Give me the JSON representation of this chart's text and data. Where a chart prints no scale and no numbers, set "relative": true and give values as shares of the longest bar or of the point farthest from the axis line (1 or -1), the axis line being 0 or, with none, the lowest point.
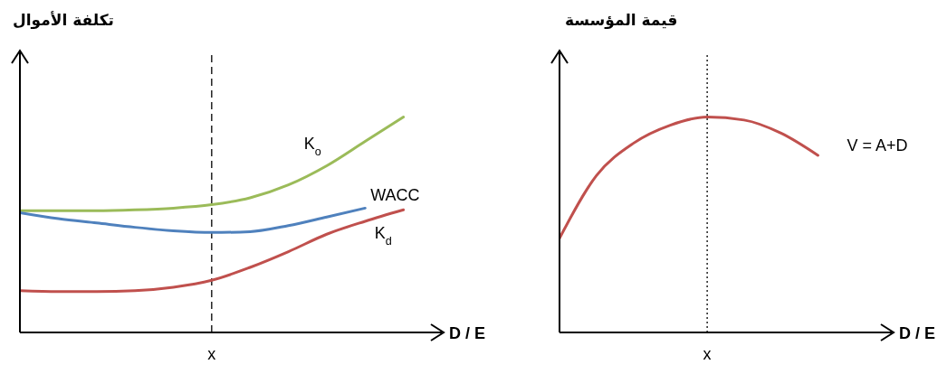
{
  "chart_data": [
    {
      "type": "line",
      "relative": true,
      "ylabel": "تكلفة الأموال",
      "xlabel": "D / E",
      "marker": "none",
      "line_style": "solid",
      "categories": [
        null,
        null,
        null,
        null,
        null,
        null,
        null,
        null,
        null,
        null,
        null,
        null
      ],
      "series": [
        {
          "name": "K$_{o}$",
          "color": "#9bbb59",
          "values": [
            0.565,
            0.565,
            0.565,
            0.569,
            0.577,
            0.593,
            0.625,
            0.685,
            0.774,
            0.887,
            1,
            null
          ]
        },
        {
          "name": "WACC",
          "color": "#4f81bd",
          "values": [
            0.556,
            0.528,
            0.508,
            0.488,
            0.472,
            0.464,
            0.468,
            0.496,
            0.536,
            0.577,
            null,
            null
          ]
        },
        {
          "name": "K$_{d}$",
          "color": "#c0504d",
          "values": [
            0.194,
            0.19,
            0.19,
            0.194,
            0.21,
            0.242,
            0.302,
            0.375,
            0.456,
            0.516,
            0.569,
            null
          ]
        }
      ],
      "annotations": [
        "x"
      ]
    },
    {
      "type": "line",
      "relative": true,
      "ylabel": "قيمة المؤسسة",
      "xlabel": "D / E",
      "marker": "none",
      "line_style": "solid",
      "categories": [
        null,
        null,
        null,
        null,
        null,
        null,
        null,
        null,
        null,
        null
      ],
      "series": [
        {
          "name": "V = A+D",
          "color": "#c0504d",
          "values": [
            0.437,
            0.728,
            0.878,
            0.962,
            1,
            0.986,
            0.925,
            0.822,
            null,
            null
          ]
        }
      ],
      "annotations": [
        "x"
      ]
    }
  ]
}
